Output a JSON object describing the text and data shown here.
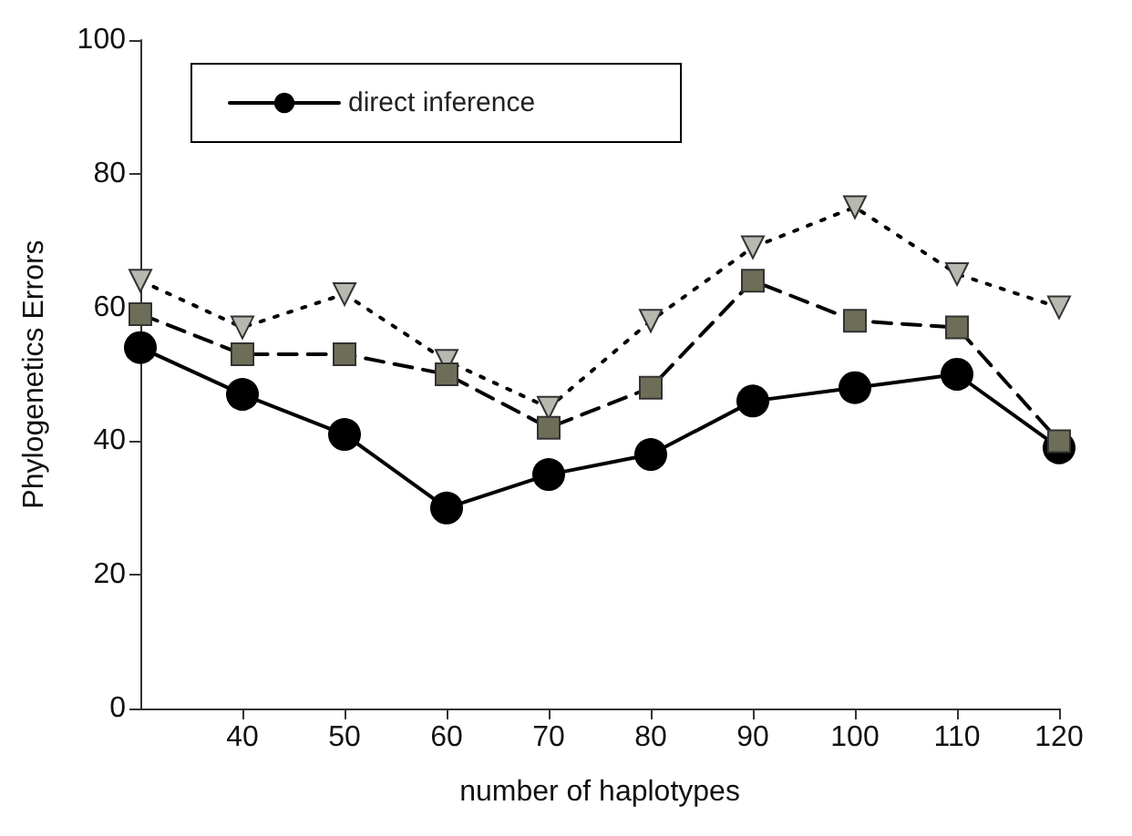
{
  "chart_data": {
    "type": "line",
    "xlabel": "number of haplotypes",
    "ylabel": "Phylogenetics Errors",
    "x": [
      30,
      40,
      50,
      60,
      70,
      80,
      90,
      100,
      110,
      120
    ],
    "series": [
      {
        "name": "direct inference",
        "color": "#000000",
        "marker": "circle",
        "line_style": "solid",
        "values": [
          54,
          47,
          41,
          30,
          35,
          38,
          46,
          48,
          50,
          39
        ]
      },
      {
        "color": "#b8b8b0",
        "marker": "triangle",
        "line_style": "dotted",
        "values": [
          64,
          57,
          62,
          52,
          45,
          58,
          69,
          75,
          65,
          60
        ]
      },
      {
        "color": "#6e6e58",
        "marker": "square",
        "line_style": "dashed",
        "values": [
          59,
          53,
          53,
          50,
          42,
          48,
          64,
          58,
          57,
          40
        ]
      }
    ],
    "xlim": [
      30,
      120
    ],
    "xticks": [
      40,
      60,
      80,
      100,
      120,
      50,
      70,
      90,
      110
    ],
    "ylim": [
      0,
      100
    ],
    "yticks": [
      0,
      20,
      40,
      60,
      80,
      100
    ],
    "grid": false,
    "legend": "top left"
  }
}
